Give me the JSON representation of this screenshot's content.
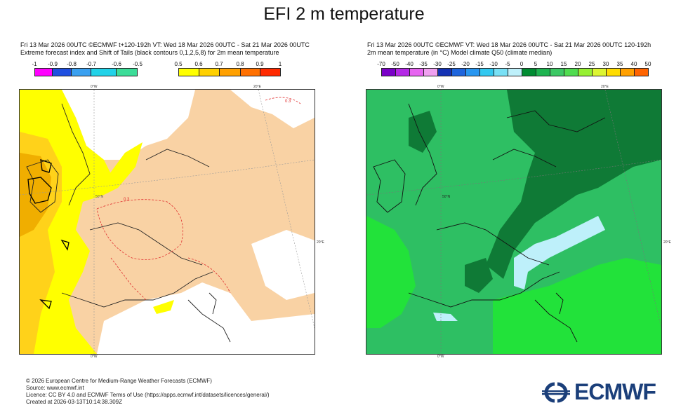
{
  "title": "EFI 2 m temperature",
  "left": {
    "line1": "Fri 13 Mar 2026 00UTC ©ECMWF t+120-192h  VT: Wed 18 Mar 2026 00UTC - Sat 21 Mar 2026 00UTC",
    "line2": "Extreme forecast index and Shift of Tails (black contours 0,1,2,5,8) for 2m mean temperature",
    "legend_neg_labels": [
      "-1",
      "-0.9",
      "-0.8",
      "-0.7",
      "-0.6",
      "-0.5"
    ],
    "legend_neg_colors": [
      "#ff00ff",
      "#1f4fe0",
      "#3aa0f0",
      "#22d2e8",
      "#3cdc98",
      "#a0e030"
    ],
    "legend_pos_labels": [
      "0.5",
      "0.6",
      "0.7",
      "0.8",
      "0.9",
      "1"
    ],
    "legend_pos_colors": [
      "#ffff00",
      "#ffd000",
      "#ffa000",
      "#ff7000",
      "#ff2a00"
    ],
    "meridian_labels": [
      "0°W",
      "20°E",
      "20°E",
      "0°W"
    ],
    "parallel_label": "50°N",
    "contour_label": "0.3",
    "colors": {
      "land": "#f9d2a4",
      "sea": "#ffffff",
      "yellow": "#ffff00",
      "orange": "#f0ae00",
      "gold": "#ffd21a"
    }
  },
  "right": {
    "line1": "Fri 13 Mar 2026 00UTC ©ECMWF VT: Wed 18 Mar 2026 00UTC - Sat 21 Mar 2026 00UTC   120-192h",
    "line2": "2m mean temperature (in °C)  Model climate Q50 (climate median)",
    "legend_labels": [
      "-70",
      "-50",
      "-40",
      "-35",
      "-30",
      "-25",
      "-20",
      "-15",
      "-10",
      "-5",
      "0",
      "5",
      "10",
      "15",
      "20",
      "25",
      "30",
      "35",
      "40",
      "50"
    ],
    "legend_colors": [
      "#7a00c8",
      "#b428e6",
      "#e664f0",
      "#f0a0f0",
      "#1432b4",
      "#1e64dc",
      "#2896f0",
      "#32c8f0",
      "#78e0f5",
      "#bef0fa",
      "#008c32",
      "#1eb450",
      "#3cc864",
      "#50dc50",
      "#96f032",
      "#dcf532",
      "#ffdc00",
      "#ffa000",
      "#ff6400",
      "#e61e00"
    ],
    "meridian_labels": [
      "0°W",
      "20°E",
      "20°E",
      "0°W"
    ],
    "parallel_label": "50°N",
    "colors": {
      "main": "#2ebf63",
      "dark": "#0f7a36",
      "bright": "#22e23a",
      "pale": "#bef0fa"
    }
  },
  "footer": [
    "© 2026 European Centre for Medium-Range Weather Forecasts (ECMWF)",
    "Source: www.ecmwf.int",
    "Licence: CC BY 4.0 and ECMWF Terms of Use (https://apps.ecmwf.int/datasets/licences/general/)",
    "Created at 2026-03-13T10:14:38.309Z"
  ],
  "logo_text": "ECMWF"
}
